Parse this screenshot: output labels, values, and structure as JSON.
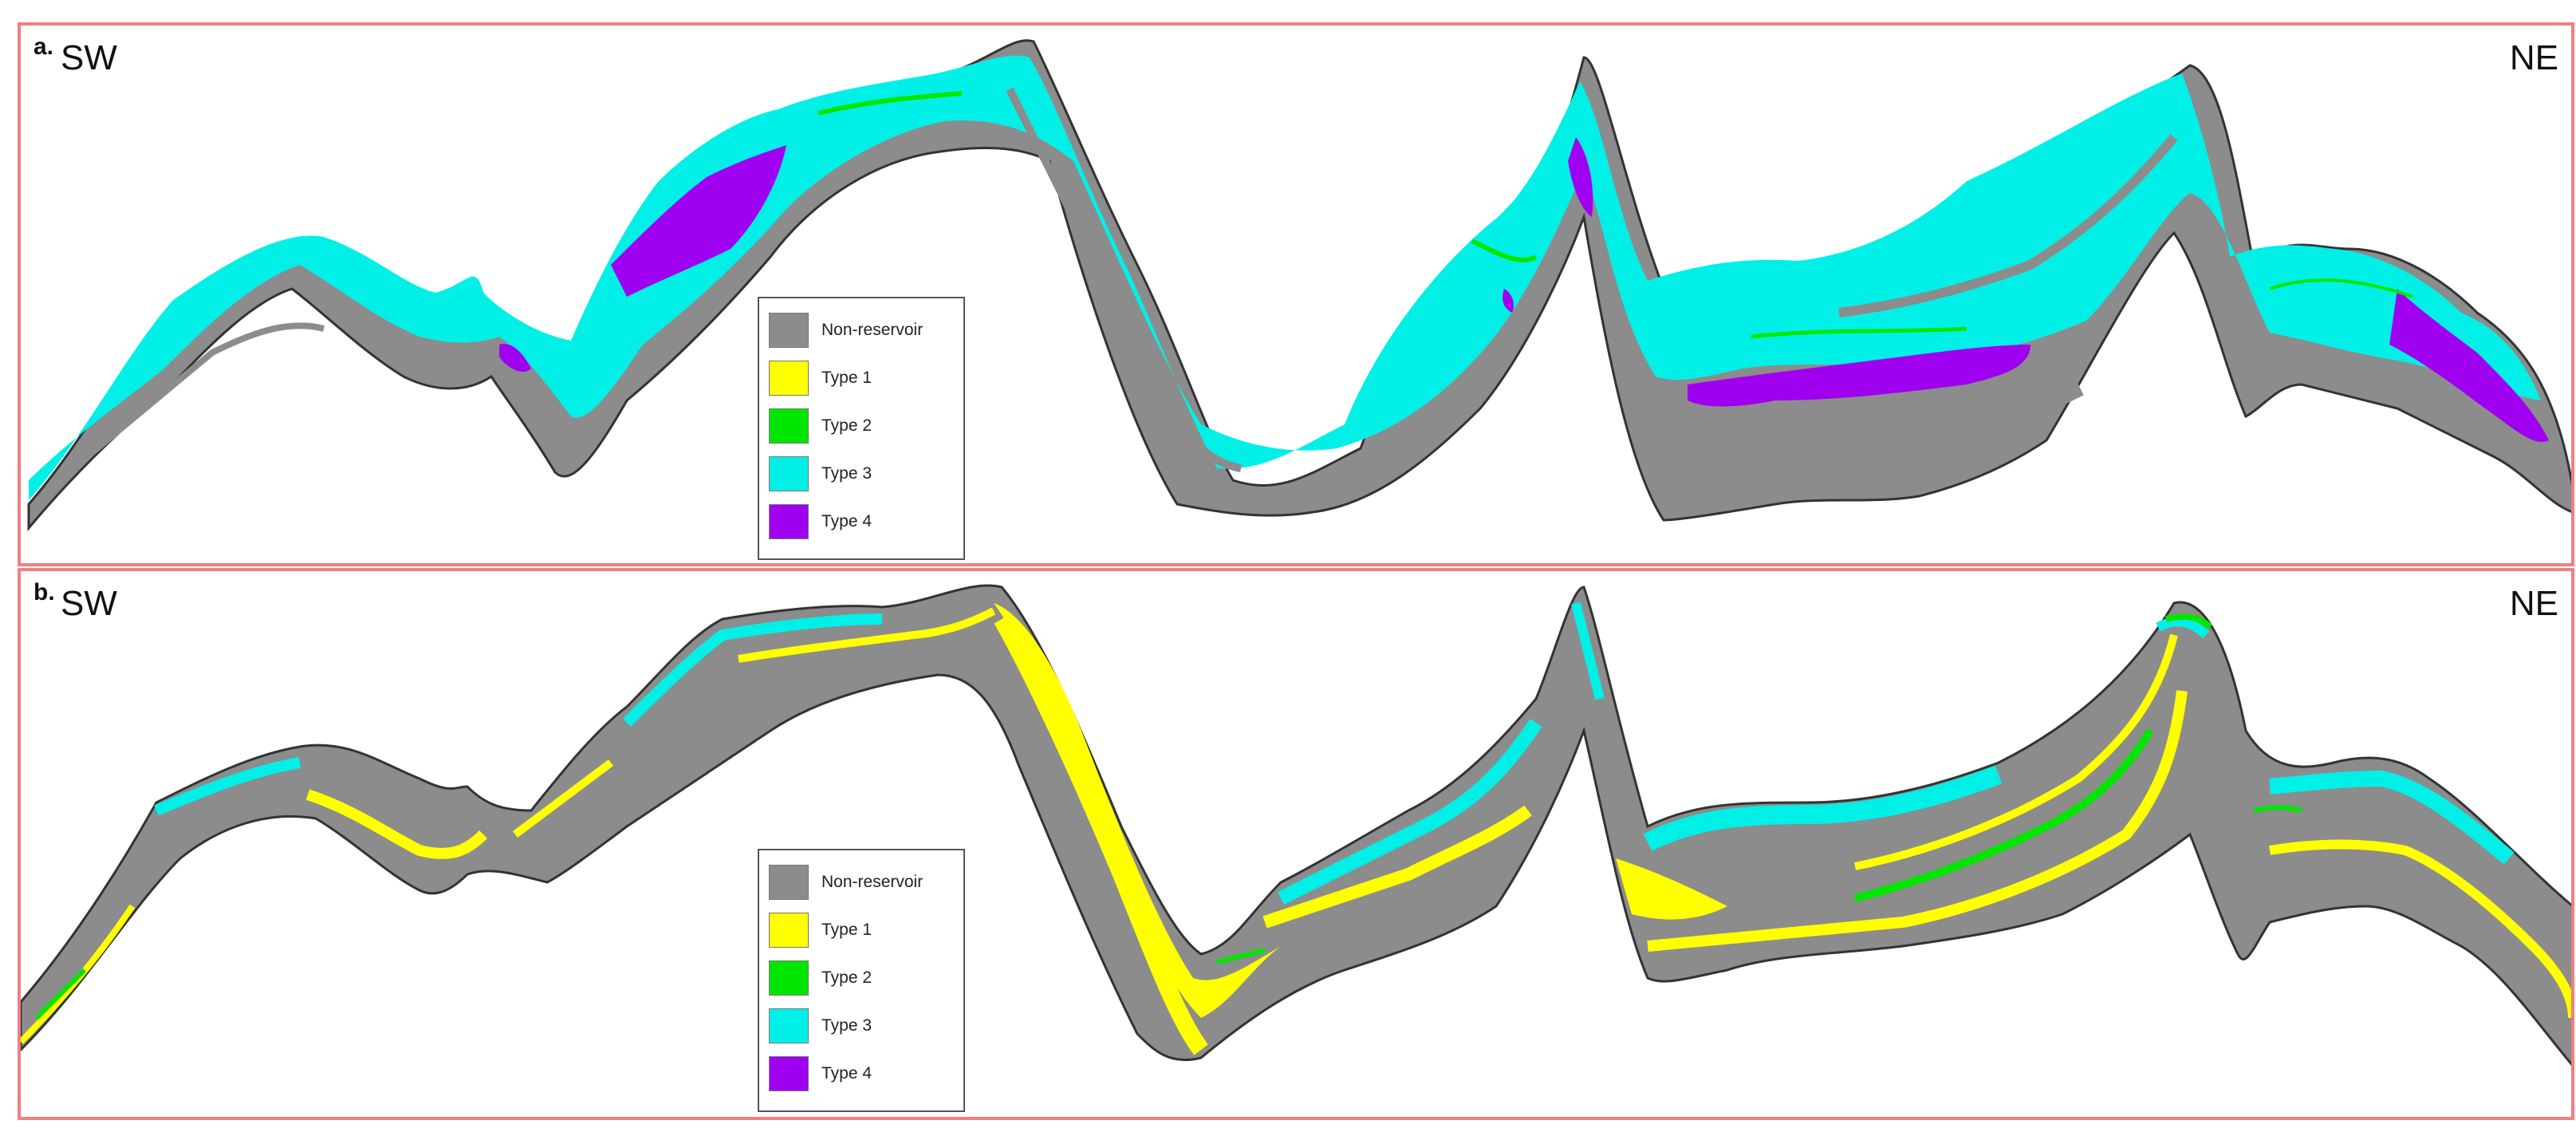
{
  "panels": [
    {
      "label": "a.",
      "left_direction": "SW",
      "right_direction": "NE"
    },
    {
      "label": "b.",
      "left_direction": "SW",
      "right_direction": "NE"
    }
  ],
  "legend": {
    "items": [
      {
        "label": "Non-reservoir",
        "color": "#8c8c8c"
      },
      {
        "label": "Type 1",
        "color": "#ffff00"
      },
      {
        "label": "Type 2",
        "color": "#00e600"
      },
      {
        "label": "Type 3",
        "color": "#00f0e8"
      },
      {
        "label": "Type 4",
        "color": "#a000f0"
      }
    ]
  },
  "colors": {
    "frame": "#f07f7f",
    "outline": "#333333",
    "non_reservoir": "#8c8c8c",
    "type1": "#ffff00",
    "type2": "#00e600",
    "type3": "#00f0e8",
    "type4": "#a000f0"
  }
}
